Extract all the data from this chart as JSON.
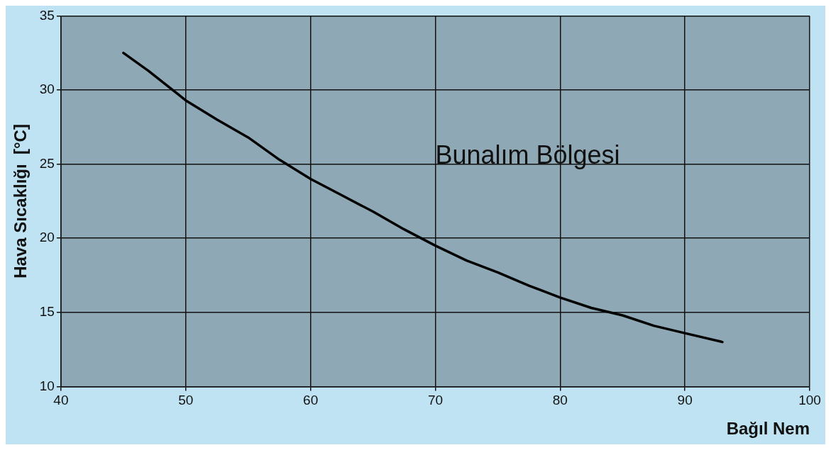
{
  "chart_data": {
    "type": "line",
    "xlabel": "Bağıl Nem",
    "ylabel": "Hava Sıcaklığı  [°C]",
    "x": [
      45,
      47,
      50,
      52.5,
      55,
      57.5,
      60,
      62.5,
      65,
      67.5,
      70,
      72.5,
      75,
      77.5,
      80,
      82.5,
      85,
      87.5,
      90,
      93
    ],
    "series": [
      {
        "color": "#000000",
        "values": [
          32.5,
          31.3,
          29.3,
          28,
          26.8,
          25.3,
          24,
          22.9,
          21.8,
          20.6,
          19.5,
          18.5,
          17.7,
          16.8,
          16,
          15.3,
          14.8,
          14.1,
          13.6,
          13
        ]
      }
    ],
    "xlim": [
      40,
      100
    ],
    "xticks": [
      40,
      50,
      60,
      70,
      80,
      90,
      100
    ],
    "ylim": [
      10,
      35
    ],
    "yticks": [
      10,
      15,
      20,
      25,
      30,
      35
    ],
    "grid": true,
    "legend": false,
    "marker": "none",
    "line_style": "solid",
    "annotations": [
      "Bunalım Bölgesi"
    ]
  }
}
